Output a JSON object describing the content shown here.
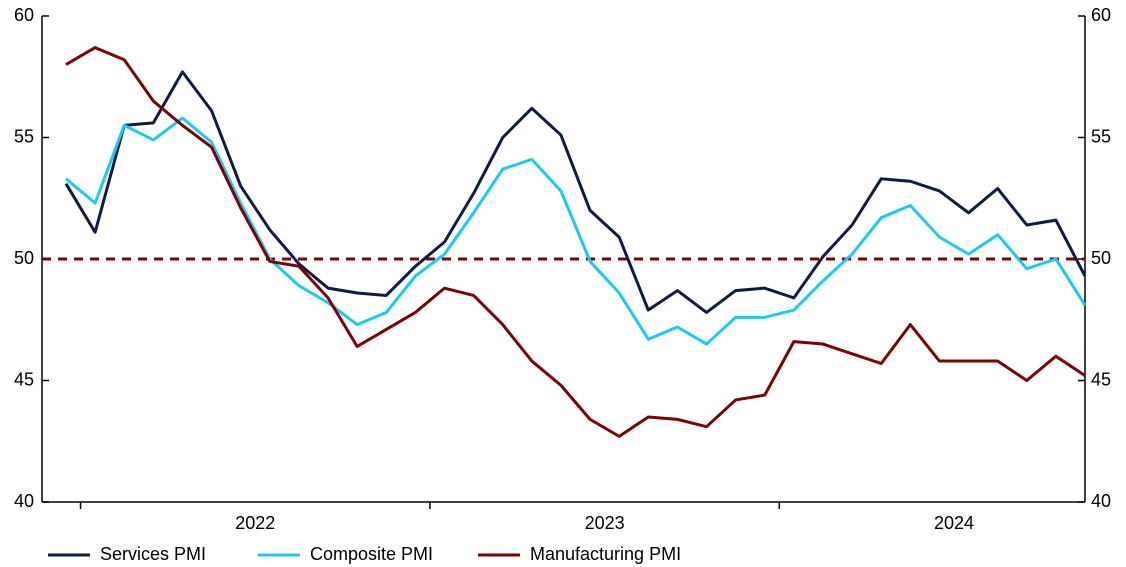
{
  "chart_data": {
    "type": "line",
    "categories": [
      null,
      null,
      null,
      null,
      null,
      null,
      null,
      null,
      null,
      null,
      null,
      null,
      null,
      null,
      null,
      null,
      null,
      null,
      null,
      null,
      null,
      null,
      null,
      null,
      null,
      null,
      null,
      null,
      null,
      null,
      null,
      null,
      null,
      null,
      null,
      null
    ],
    "year_labels": [
      "2022",
      "2023",
      "2024"
    ],
    "series": [
      {
        "name": "Services PMI",
        "color": "#0d1b45",
        "values": [
          53.1,
          51.1,
          55.5,
          55.6,
          57.7,
          56.1,
          53.0,
          51.2,
          49.8,
          48.8,
          48.6,
          48.5,
          49.7,
          50.7,
          52.7,
          55.0,
          56.2,
          55.1,
          52.0,
          50.9,
          47.9,
          48.7,
          47.8,
          48.7,
          48.8,
          48.4,
          50.1,
          51.4,
          53.3,
          53.2,
          52.8,
          51.9,
          52.9,
          51.4,
          51.6,
          49.3
        ]
      },
      {
        "name": "Composite PMI",
        "color": "#1ec8f5",
        "values": [
          53.3,
          52.3,
          55.5,
          54.9,
          55.8,
          54.8,
          52.3,
          50.0,
          48.9,
          48.2,
          47.3,
          47.8,
          49.3,
          50.2,
          51.9,
          53.7,
          54.1,
          52.8,
          49.9,
          48.6,
          46.7,
          47.2,
          46.5,
          47.6,
          47.6,
          47.9,
          49.1,
          50.2,
          51.7,
          52.2,
          50.9,
          50.2,
          51.0,
          49.6,
          50.0,
          48.1
        ]
      },
      {
        "name": "Manufacturing PMI",
        "color": "#7b0000",
        "values": [
          58.0,
          58.7,
          58.2,
          56.5,
          55.5,
          54.6,
          52.1,
          49.9,
          49.7,
          48.4,
          46.4,
          47.1,
          47.8,
          48.8,
          48.5,
          47.3,
          45.8,
          44.8,
          43.4,
          42.7,
          43.5,
          43.4,
          43.1,
          44.2,
          44.4,
          46.6,
          46.5,
          46.1,
          45.7,
          47.3,
          45.8,
          45.8,
          45.8,
          45.0,
          46.0,
          45.2
        ]
      }
    ],
    "reference_line": {
      "value": 50,
      "color": "#7b0000"
    },
    "ylim": [
      40,
      60
    ],
    "yticks": [
      40,
      45,
      50,
      55,
      60
    ],
    "y2lim": [
      40,
      60
    ],
    "y2ticks": [
      40,
      45,
      50,
      55,
      60
    ],
    "legend": "bottom"
  }
}
